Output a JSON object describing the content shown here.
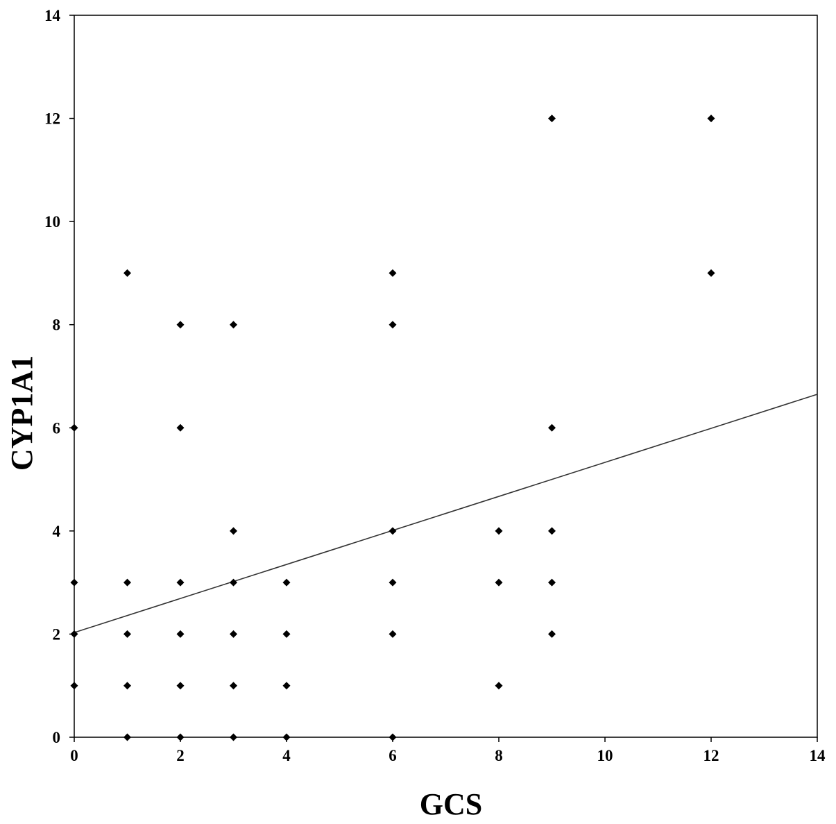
{
  "chart_data": {
    "type": "scatter",
    "xlabel": "GCS",
    "ylabel": "CYP1A1",
    "xlim": [
      0,
      14
    ],
    "ylim": [
      0,
      14
    ],
    "xticks": [
      "0",
      "2",
      "4",
      "6",
      "8",
      "10",
      "12",
      "14"
    ],
    "yticks": [
      "0",
      "2",
      "4",
      "6",
      "8",
      "10",
      "12",
      "14"
    ],
    "grid": false,
    "legend": "none",
    "marker": "diamond",
    "colors": {
      "points": "#000000",
      "trendline": "#333333",
      "axes": "#000000"
    },
    "points": [
      {
        "x": 0,
        "y": 6
      },
      {
        "x": 0,
        "y": 3
      },
      {
        "x": 0,
        "y": 2
      },
      {
        "x": 0,
        "y": 1
      },
      {
        "x": 1,
        "y": 9
      },
      {
        "x": 1,
        "y": 3
      },
      {
        "x": 1,
        "y": 2
      },
      {
        "x": 1,
        "y": 1
      },
      {
        "x": 1,
        "y": 0
      },
      {
        "x": 2,
        "y": 8
      },
      {
        "x": 2,
        "y": 6
      },
      {
        "x": 2,
        "y": 3
      },
      {
        "x": 2,
        "y": 2
      },
      {
        "x": 2,
        "y": 1
      },
      {
        "x": 2,
        "y": 0
      },
      {
        "x": 3,
        "y": 8
      },
      {
        "x": 3,
        "y": 4
      },
      {
        "x": 3,
        "y": 3
      },
      {
        "x": 3,
        "y": 2
      },
      {
        "x": 3,
        "y": 1
      },
      {
        "x": 3,
        "y": 0
      },
      {
        "x": 4,
        "y": 3
      },
      {
        "x": 4,
        "y": 2
      },
      {
        "x": 4,
        "y": 1
      },
      {
        "x": 4,
        "y": 0
      },
      {
        "x": 6,
        "y": 9
      },
      {
        "x": 6,
        "y": 8
      },
      {
        "x": 6,
        "y": 4
      },
      {
        "x": 6,
        "y": 3
      },
      {
        "x": 6,
        "y": 2
      },
      {
        "x": 6,
        "y": 0
      },
      {
        "x": 8,
        "y": 4
      },
      {
        "x": 8,
        "y": 3
      },
      {
        "x": 8,
        "y": 1
      },
      {
        "x": 9,
        "y": 12
      },
      {
        "x": 9,
        "y": 6
      },
      {
        "x": 9,
        "y": 4
      },
      {
        "x": 9,
        "y": 3
      },
      {
        "x": 9,
        "y": 2
      },
      {
        "x": 12,
        "y": 12
      },
      {
        "x": 12,
        "y": 9
      }
    ],
    "trendline": {
      "x": [
        0,
        14
      ],
      "y": [
        2.03,
        6.65
      ]
    }
  }
}
